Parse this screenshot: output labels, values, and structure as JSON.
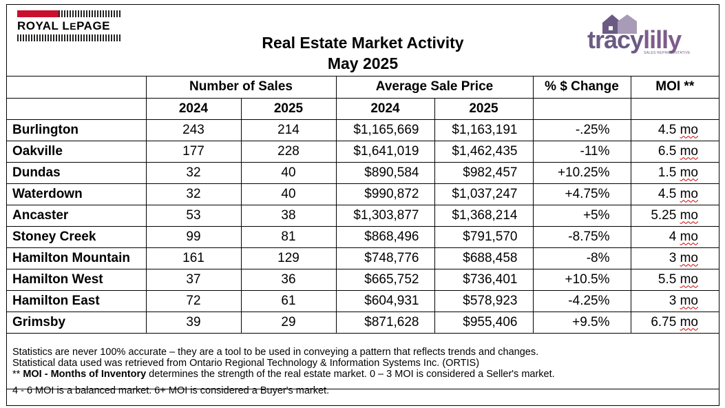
{
  "title_line1": "Real Estate Market Activity",
  "title_line2": "May 2025",
  "logo_left": {
    "text_main": "ROYAL L",
    "text_small": "E",
    "text_end": "PAGE"
  },
  "logo_right": {
    "name_a": "tracy",
    "name_b": "lilly",
    "subtitle": "SALES REPRESENTATIVE"
  },
  "headers": {
    "sales": "Number of Sales",
    "price": "Average Sale Price",
    "change": "% $ Change",
    "moi": "MOI **",
    "y2024": "2024",
    "y2025": "2025"
  },
  "rows": [
    {
      "city": "Burlington",
      "s2024": "243",
      "s2025": "214",
      "p2024": "$1,165,669",
      "p2025": "$1,163,191",
      "change": "-.25%",
      "moi_num": "4.5",
      "moi_unit": "mo"
    },
    {
      "city": "Oakville",
      "s2024": "177",
      "s2025": "228",
      "p2024": "$1,641,019",
      "p2025": "$1,462,435",
      "change": "-11%",
      "moi_num": "6.5",
      "moi_unit": "mo"
    },
    {
      "city": "Dundas",
      "s2024": "32",
      "s2025": "40",
      "p2024": "$890,584",
      "p2025": "$982,457",
      "change": "+10.25%",
      "moi_num": "1.5",
      "moi_unit": "mo"
    },
    {
      "city": "Waterdown",
      "s2024": "32",
      "s2025": "40",
      "p2024": "$990,872",
      "p2025": "$1,037,247",
      "change": "+4.75%",
      "moi_num": "4.5",
      "moi_unit": "mo"
    },
    {
      "city": "Ancaster",
      "s2024": "53",
      "s2025": "38",
      "p2024": "$1,303,877",
      "p2025": "$1,368,214",
      "change": "+5%",
      "moi_num": "5.25",
      "moi_unit": "mo"
    },
    {
      "city": "Stoney Creek",
      "s2024": "99",
      "s2025": "81",
      "p2024": "$868,496",
      "p2025": "$791,570",
      "change": "-8.75%",
      "moi_num": "4",
      "moi_unit": "mo"
    },
    {
      "city": "Hamilton Mountain",
      "s2024": "161",
      "s2025": "129",
      "p2024": "$748,776",
      "p2025": "$688,458",
      "change": "-8%",
      "moi_num": "3",
      "moi_unit": "mo"
    },
    {
      "city": "Hamilton West",
      "s2024": "37",
      "s2025": "36",
      "p2024": "$665,752",
      "p2025": "$736,401",
      "change": "+10.5%",
      "moi_num": "5.5",
      "moi_unit": "mo"
    },
    {
      "city": "Hamilton East",
      "s2024": "72",
      "s2025": "61",
      "p2024": "$604,931",
      "p2025": "$578,923",
      "change": "-4.25%",
      "moi_num": "3",
      "moi_unit": "mo"
    },
    {
      "city": "Grimsby",
      "s2024": "39",
      "s2025": "29",
      "p2024": "$871,628",
      "p2025": "$955,406",
      "change": "+9.5%",
      "moi_num": "6.75",
      "moi_unit": "mo"
    }
  ],
  "notes": {
    "line1": "Statistics are never 100% accurate – they are a tool to be used in conveying a pattern that reflects trends and changes.",
    "line2": "Statistical data used was retrieved from Ontario Regional Technology & Information Systems Inc. (ORTIS)",
    "line3_prefix": "** ",
    "line3_bold": "MOI - Months of Inventory",
    "line3_rest": " determines the strength of the real estate market. 0 – 3 MOI is considered a Seller's market.",
    "line4": "4 - 6 MOI is a balanced market. 6+ MOI is considered a Buyer's market."
  },
  "colors": {
    "brand_red": "#c8102e",
    "purple": "#6b5b82",
    "spell_underline": "#cc0000"
  }
}
